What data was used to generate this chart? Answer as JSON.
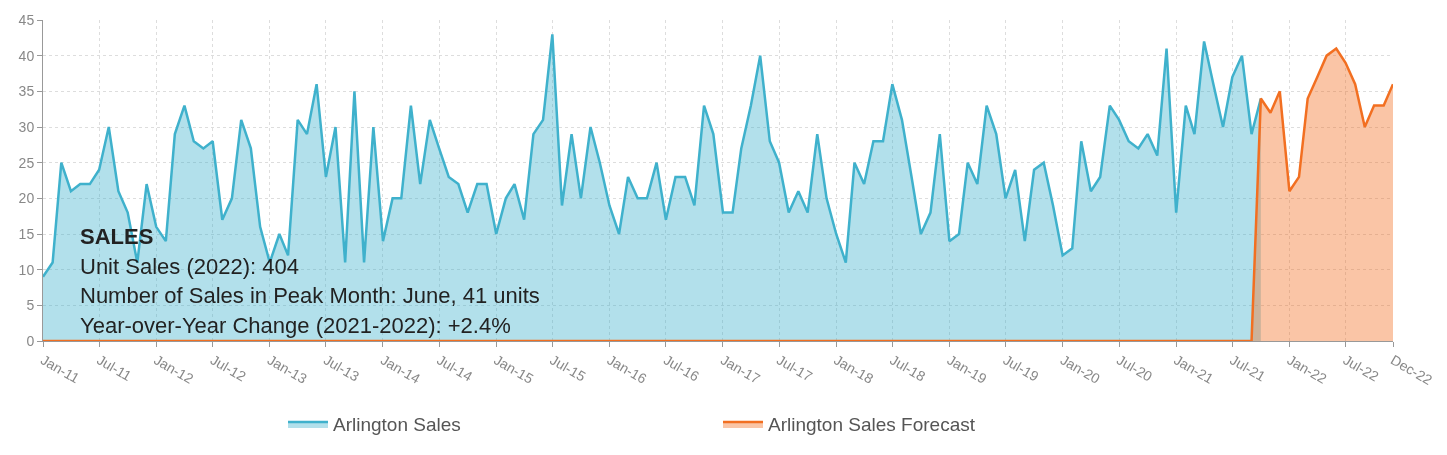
{
  "chart_data": {
    "type": "area",
    "x": [
      "2011-01",
      "2011-02",
      "2011-03",
      "2011-04",
      "2011-05",
      "2011-06",
      "2011-07",
      "2011-08",
      "2011-09",
      "2011-10",
      "2011-11",
      "2011-12",
      "2012-01",
      "2012-02",
      "2012-03",
      "2012-04",
      "2012-05",
      "2012-06",
      "2012-07",
      "2012-08",
      "2012-09",
      "2012-10",
      "2012-11",
      "2012-12",
      "2013-01",
      "2013-02",
      "2013-03",
      "2013-04",
      "2013-05",
      "2013-06",
      "2013-07",
      "2013-08",
      "2013-09",
      "2013-10",
      "2013-11",
      "2013-12",
      "2014-01",
      "2014-02",
      "2014-03",
      "2014-04",
      "2014-05",
      "2014-06",
      "2014-07",
      "2014-08",
      "2014-09",
      "2014-10",
      "2014-11",
      "2014-12",
      "2015-01",
      "2015-02",
      "2015-03",
      "2015-04",
      "2015-05",
      "2015-06",
      "2015-07",
      "2015-08",
      "2015-09",
      "2015-10",
      "2015-11",
      "2015-12",
      "2016-01",
      "2016-02",
      "2016-03",
      "2016-04",
      "2016-05",
      "2016-06",
      "2016-07",
      "2016-08",
      "2016-09",
      "2016-10",
      "2016-11",
      "2016-12",
      "2017-01",
      "2017-02",
      "2017-03",
      "2017-04",
      "2017-05",
      "2017-06",
      "2017-07",
      "2017-08",
      "2017-09",
      "2017-10",
      "2017-11",
      "2017-12",
      "2018-01",
      "2018-02",
      "2018-03",
      "2018-04",
      "2018-05",
      "2018-06",
      "2018-07",
      "2018-08",
      "2018-09",
      "2018-10",
      "2018-11",
      "2018-12",
      "2019-01",
      "2019-02",
      "2019-03",
      "2019-04",
      "2019-05",
      "2019-06",
      "2019-07",
      "2019-08",
      "2019-09",
      "2019-10",
      "2019-11",
      "2019-12",
      "2020-01",
      "2020-02",
      "2020-03",
      "2020-04",
      "2020-05",
      "2020-06",
      "2020-07",
      "2020-08",
      "2020-09",
      "2020-10",
      "2020-11",
      "2020-12",
      "2021-01",
      "2021-02",
      "2021-03",
      "2021-04",
      "2021-05",
      "2021-06",
      "2021-07",
      "2021-08",
      "2021-09",
      "2021-10",
      "2021-11",
      "2021-12",
      "2022-01",
      "2022-02",
      "2022-03",
      "2022-04",
      "2022-05",
      "2022-06",
      "2022-07",
      "2022-08",
      "2022-09",
      "2022-10",
      "2022-11",
      "2022-12"
    ],
    "series": [
      {
        "name": "Arlington Sales",
        "color": "#3fb1cc",
        "values": [
          9,
          11,
          25,
          21,
          22,
          22,
          24,
          30,
          21,
          18,
          11,
          22,
          16,
          14,
          29,
          33,
          28,
          27,
          28,
          17,
          20,
          31,
          27,
          16,
          11,
          15,
          12,
          31,
          29,
          36,
          23,
          30,
          11,
          35,
          11,
          30,
          14,
          20,
          20,
          33,
          22,
          31,
          27,
          23,
          22,
          18,
          22,
          22,
          15,
          20,
          22,
          17,
          29,
          31,
          43,
          19,
          29,
          20,
          30,
          25,
          19,
          15,
          23,
          20,
          20,
          25,
          17,
          23,
          23,
          19,
          33,
          29,
          18,
          18,
          27,
          33,
          40,
          28,
          25,
          18,
          21,
          18,
          29,
          20,
          15,
          11,
          25,
          22,
          28,
          28,
          36,
          31,
          23,
          15,
          18,
          29,
          14,
          15,
          25,
          22,
          33,
          29,
          20,
          24,
          14,
          24,
          25,
          19,
          12,
          13,
          28,
          21,
          23,
          33,
          31,
          28,
          27,
          29,
          26,
          41,
          18,
          33,
          29,
          42,
          36,
          30,
          37,
          40,
          29,
          34,
          null,
          null,
          null,
          null,
          null,
          null,
          null,
          null,
          null,
          null,
          null,
          null,
          null,
          null
        ]
      },
      {
        "name": "Arlington Sales Forecast",
        "color": "#f26f21",
        "values": [
          0,
          0,
          0,
          0,
          0,
          0,
          0,
          0,
          0,
          0,
          0,
          0,
          0,
          0,
          0,
          0,
          0,
          0,
          0,
          0,
          0,
          0,
          0,
          0,
          0,
          0,
          0,
          0,
          0,
          0,
          0,
          0,
          0,
          0,
          0,
          0,
          0,
          0,
          0,
          0,
          0,
          0,
          0,
          0,
          0,
          0,
          0,
          0,
          0,
          0,
          0,
          0,
          0,
          0,
          0,
          0,
          0,
          0,
          0,
          0,
          0,
          0,
          0,
          0,
          0,
          0,
          0,
          0,
          0,
          0,
          0,
          0,
          0,
          0,
          0,
          0,
          0,
          0,
          0,
          0,
          0,
          0,
          0,
          0,
          0,
          0,
          0,
          0,
          0,
          0,
          0,
          0,
          0,
          0,
          0,
          0,
          0,
          0,
          0,
          0,
          0,
          0,
          0,
          0,
          0,
          0,
          0,
          0,
          0,
          0,
          0,
          0,
          0,
          0,
          0,
          0,
          0,
          0,
          0,
          0,
          0,
          0,
          0,
          0,
          0,
          0,
          0,
          0,
          0,
          34,
          32,
          35,
          21,
          23,
          34,
          37,
          40,
          41,
          39,
          36,
          30,
          33,
          33,
          36
        ]
      }
    ],
    "xlim": [
      "2011-01",
      "2022-12"
    ],
    "xticks": [
      {
        "value": "2011-01",
        "label": "Jan-11"
      },
      {
        "value": "2011-07",
        "label": "Jul-11"
      },
      {
        "value": "2012-01",
        "label": "Jan-12"
      },
      {
        "value": "2012-07",
        "label": "Jul-12"
      },
      {
        "value": "2013-01",
        "label": "Jan-13"
      },
      {
        "value": "2013-07",
        "label": "Jul-13"
      },
      {
        "value": "2014-01",
        "label": "Jan-14"
      },
      {
        "value": "2014-07",
        "label": "Jul-14"
      },
      {
        "value": "2015-01",
        "label": "Jan-15"
      },
      {
        "value": "2015-07",
        "label": "Jul-15"
      },
      {
        "value": "2016-01",
        "label": "Jan-16"
      },
      {
        "value": "2016-07",
        "label": "Jul-16"
      },
      {
        "value": "2017-01",
        "label": "Jan-17"
      },
      {
        "value": "2017-07",
        "label": "Jul-17"
      },
      {
        "value": "2018-01",
        "label": "Jan-18"
      },
      {
        "value": "2018-07",
        "label": "Jul-18"
      },
      {
        "value": "2019-01",
        "label": "Jan-19"
      },
      {
        "value": "2019-07",
        "label": "Jul-19"
      },
      {
        "value": "2020-01",
        "label": "Jan-20"
      },
      {
        "value": "2020-07",
        "label": "Jul-20"
      },
      {
        "value": "2021-01",
        "label": "Jan-21"
      },
      {
        "value": "2021-07",
        "label": "Jul-21"
      },
      {
        "value": "2022-01",
        "label": "Jan-22"
      },
      {
        "value": "2022-07",
        "label": "Jul-22"
      },
      {
        "value": "2022-12",
        "label": "Dec-22"
      }
    ],
    "ylim": [
      0,
      45
    ],
    "yticks": [
      0,
      5,
      10,
      15,
      20,
      25,
      30,
      35,
      40,
      45
    ],
    "grid": true,
    "legend": "bottom",
    "marker": "none",
    "line_style": "solid",
    "annotations": [
      "SALES",
      "Unit Sales (2022): 404",
      "Number of Sales in Peak Month: June, 41 units",
      "Year-over-Year Change (2021-2022): +2.4%"
    ]
  }
}
